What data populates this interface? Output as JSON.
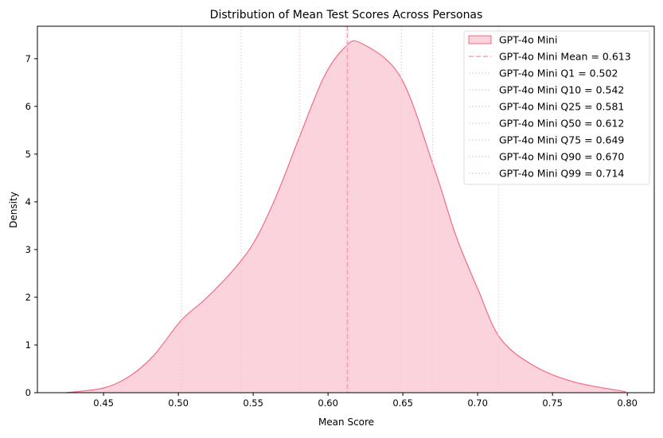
{
  "chart_data": {
    "type": "area",
    "title": "Distribution of Mean Test Scores Across Personas",
    "xlabel": "Mean Score",
    "ylabel": "Density",
    "xlim": [
      0.4058,
      0.818
    ],
    "ylim": [
      0,
      7.68
    ],
    "xticks": [
      "0.45",
      "0.50",
      "0.55",
      "0.60",
      "0.65",
      "0.70",
      "0.75",
      "0.80"
    ],
    "yticks": [
      "0",
      "1",
      "2",
      "3",
      "4",
      "5",
      "6",
      "7"
    ],
    "grid": false,
    "legend_position": "top-right",
    "colors": {
      "line": "#f26b83",
      "fill": "#fad3dc",
      "mean": "#f7a3b5",
      "quantile": "#fbc8d3"
    },
    "series": [
      {
        "name": "GPT-4o Mini",
        "x": [
          0.425,
          0.45,
          0.4676,
          0.4835,
          0.502,
          0.5176,
          0.5367,
          0.551,
          0.5654,
          0.5814,
          0.5973,
          0.611,
          0.6218,
          0.6484,
          0.6707,
          0.6856,
          0.7,
          0.7149,
          0.7372,
          0.7638,
          0.799
        ],
        "y": [
          0,
          0.1,
          0.35,
          0.78,
          1.52,
          1.95,
          2.57,
          3.18,
          4.12,
          5.4,
          6.62,
          7.23,
          7.33,
          6.62,
          4.73,
          3.28,
          2.18,
          1.15,
          0.57,
          0.23,
          0.02
        ]
      }
    ],
    "vlines": [
      {
        "label": "GPT-4o Mini Mean = 0.613",
        "x": 0.613,
        "style": "dashed"
      },
      {
        "label": "GPT-4o Mini Q1 = 0.502",
        "x": 0.502,
        "style": "dotted"
      },
      {
        "label": "GPT-4o Mini Q10 = 0.542",
        "x": 0.542,
        "style": "dotted"
      },
      {
        "label": "GPT-4o Mini Q25 = 0.581",
        "x": 0.581,
        "style": "dotted"
      },
      {
        "label": "GPT-4o Mini Q50 = 0.612",
        "x": 0.612,
        "style": "dotted"
      },
      {
        "label": "GPT-4o Mini Q75 = 0.649",
        "x": 0.649,
        "style": "dotted"
      },
      {
        "label": "GPT-4o Mini Q90 = 0.670",
        "x": 0.67,
        "style": "dotted"
      },
      {
        "label": "GPT-4o Mini Q99 = 0.714",
        "x": 0.714,
        "style": "dotted"
      }
    ]
  }
}
